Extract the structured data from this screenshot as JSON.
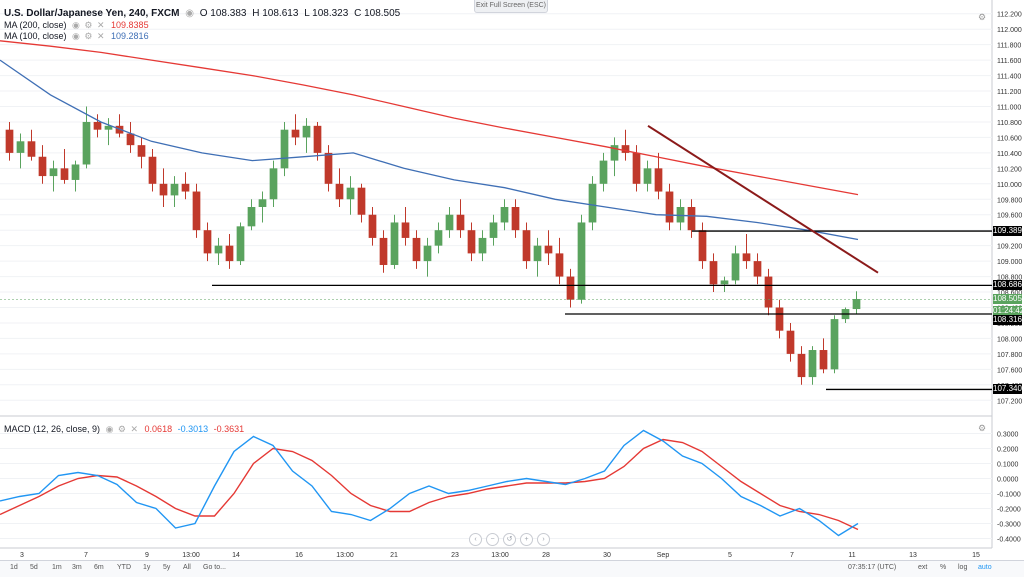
{
  "header": {
    "symbol": "U.S. Dollar/Japanese Yen, 240, FXCM",
    "ohlc": [
      "O 108.383",
      "H 108.613",
      "L 108.323",
      "C 108.505"
    ],
    "exit_label": "Exit Full Screen (ESC)"
  },
  "legends": {
    "ma200": {
      "label": "MA (200, close)",
      "value": "109.8385"
    },
    "ma100": {
      "label": "MA (100, close)",
      "value": "109.2816"
    },
    "macd": {
      "label": "MACD (12, 26, close, 9)",
      "hist": "0.0618",
      "macd": "-0.3013",
      "signal": "-0.3631"
    }
  },
  "colors": {
    "up": "#5aa35e",
    "down": "#c0392b",
    "ma200": "#e53935",
    "ma100": "#3f6fb5",
    "trendline": "#8b1a1a",
    "macd": "#2196f3",
    "signal": "#e53935"
  },
  "price_axis": {
    "ticks": [
      "112.200",
      "112.000",
      "111.800",
      "111.600",
      "111.400",
      "111.200",
      "111.000",
      "110.800",
      "110.600",
      "110.400",
      "110.200",
      "110.000",
      "109.800",
      "109.600",
      "109.400",
      "109.200",
      "109.000",
      "108.800",
      "108.600",
      "108.400",
      "108.200",
      "108.000",
      "107.800",
      "107.600",
      "107.400",
      "107.200"
    ],
    "tags": [
      {
        "price": "109.389",
        "y": 109.389,
        "color": "#000000"
      },
      {
        "price": "108.686",
        "y": 108.686,
        "color": "#000000"
      },
      {
        "price": "108.505",
        "y": 108.505,
        "color": "#5aa35e"
      },
      {
        "price": "01:24:42",
        "y": 108.36,
        "color": "#5aa35e"
      },
      {
        "price": "108.316",
        "y": 108.24,
        "color": "#000000"
      },
      {
        "price": "107.340",
        "y": 107.34,
        "color": "#000000"
      }
    ]
  },
  "macd_axis": {
    "ticks": [
      "0.3000",
      "0.2000",
      "0.1000",
      "0.0000",
      "-0.1000",
      "-0.2000",
      "-0.3000",
      "-0.4000"
    ]
  },
  "time_axis": {
    "labels": [
      "3",
      "7",
      "9",
      "13:00",
      "14",
      "16",
      "13:00",
      "21",
      "23",
      "13:00",
      "28",
      "30",
      "Sep",
      "5",
      "7",
      "11",
      "13",
      "15"
    ],
    "clock": "07:35:17 (UTC)",
    "right_items": [
      "ext",
      "%",
      "log",
      "auto"
    ]
  },
  "toolbar": {
    "ranges": [
      "1d",
      "5d",
      "1m",
      "3m",
      "6m",
      "YTD",
      "1y",
      "5y",
      "All",
      "Go to..."
    ]
  },
  "chart_data": {
    "type": "candlestick",
    "title": "U.S. Dollar/Japanese Yen, 240, FXCM",
    "ylim": [
      107.1,
      112.3
    ],
    "price_lines": [
      108.686,
      108.316,
      109.389,
      107.34
    ],
    "trendline": {
      "from": [
        0,
        110.75
      ],
      "to": [
        1,
        108.85
      ]
    },
    "candles": [
      [
        110.7,
        110.8,
        110.3,
        110.4
      ],
      [
        110.4,
        110.65,
        110.2,
        110.55
      ],
      [
        110.55,
        110.7,
        110.3,
        110.35
      ],
      [
        110.35,
        110.5,
        110.0,
        110.1
      ],
      [
        110.1,
        110.3,
        109.9,
        110.2
      ],
      [
        110.2,
        110.45,
        110.0,
        110.05
      ],
      [
        110.05,
        110.3,
        109.9,
        110.25
      ],
      [
        110.25,
        111.0,
        110.2,
        110.8
      ],
      [
        110.8,
        110.9,
        110.6,
        110.7
      ],
      [
        110.7,
        110.85,
        110.5,
        110.75
      ],
      [
        110.75,
        110.9,
        110.6,
        110.65
      ],
      [
        110.65,
        110.8,
        110.4,
        110.5
      ],
      [
        110.5,
        110.6,
        110.2,
        110.35
      ],
      [
        110.35,
        110.45,
        109.9,
        110.0
      ],
      [
        110.0,
        110.2,
        109.7,
        109.85
      ],
      [
        109.85,
        110.1,
        109.7,
        110.0
      ],
      [
        110.0,
        110.15,
        109.8,
        109.9
      ],
      [
        109.9,
        110.0,
        109.3,
        109.4
      ],
      [
        109.4,
        109.5,
        109.0,
        109.1
      ],
      [
        109.1,
        109.3,
        108.95,
        109.2
      ],
      [
        109.2,
        109.35,
        108.9,
        109.0
      ],
      [
        109.0,
        109.5,
        108.95,
        109.45
      ],
      [
        109.45,
        109.8,
        109.4,
        109.7
      ],
      [
        109.7,
        109.9,
        109.5,
        109.8
      ],
      [
        109.8,
        110.3,
        109.7,
        110.2
      ],
      [
        110.2,
        110.8,
        110.1,
        110.7
      ],
      [
        110.7,
        110.9,
        110.5,
        110.6
      ],
      [
        110.6,
        110.85,
        110.4,
        110.75
      ],
      [
        110.75,
        110.8,
        110.3,
        110.4
      ],
      [
        110.4,
        110.5,
        109.9,
        110.0
      ],
      [
        110.0,
        110.2,
        109.7,
        109.8
      ],
      [
        109.8,
        110.1,
        109.6,
        109.95
      ],
      [
        109.95,
        110.0,
        109.5,
        109.6
      ],
      [
        109.6,
        109.7,
        109.2,
        109.3
      ],
      [
        109.3,
        109.4,
        108.85,
        108.95
      ],
      [
        108.95,
        109.6,
        108.9,
        109.5
      ],
      [
        109.5,
        109.7,
        109.2,
        109.3
      ],
      [
        109.3,
        109.4,
        108.9,
        109.0
      ],
      [
        109.0,
        109.3,
        108.8,
        109.2
      ],
      [
        109.2,
        109.5,
        109.1,
        109.4
      ],
      [
        109.4,
        109.7,
        109.3,
        109.6
      ],
      [
        109.6,
        109.8,
        109.3,
        109.4
      ],
      [
        109.4,
        109.5,
        109.0,
        109.1
      ],
      [
        109.1,
        109.4,
        109.0,
        109.3
      ],
      [
        109.3,
        109.6,
        109.2,
        109.5
      ],
      [
        109.5,
        109.8,
        109.4,
        109.7
      ],
      [
        109.7,
        109.8,
        109.3,
        109.4
      ],
      [
        109.4,
        109.5,
        108.9,
        109.0
      ],
      [
        109.0,
        109.3,
        108.8,
        109.2
      ],
      [
        109.2,
        109.4,
        108.95,
        109.1
      ],
      [
        109.1,
        109.3,
        108.7,
        108.8
      ],
      [
        108.8,
        108.9,
        108.4,
        108.5
      ],
      [
        108.5,
        109.6,
        108.45,
        109.5
      ],
      [
        109.5,
        110.1,
        109.4,
        110.0
      ],
      [
        110.0,
        110.4,
        109.9,
        110.3
      ],
      [
        110.3,
        110.6,
        110.1,
        110.5
      ],
      [
        110.5,
        110.7,
        110.3,
        110.4
      ],
      [
        110.4,
        110.5,
        109.9,
        110.0
      ],
      [
        110.0,
        110.3,
        109.9,
        110.2
      ],
      [
        110.2,
        110.4,
        109.8,
        109.9
      ],
      [
        109.9,
        110.0,
        109.4,
        109.5
      ],
      [
        109.5,
        109.8,
        109.4,
        109.7
      ],
      [
        109.7,
        109.8,
        109.3,
        109.4
      ],
      [
        109.4,
        109.5,
        108.9,
        109.0
      ],
      [
        109.0,
        109.1,
        108.6,
        108.7
      ],
      [
        108.7,
        108.8,
        108.6,
        108.75
      ],
      [
        108.75,
        109.2,
        108.7,
        109.1
      ],
      [
        109.1,
        109.35,
        108.9,
        109.0
      ],
      [
        109.0,
        109.1,
        108.7,
        108.8
      ],
      [
        108.8,
        108.9,
        108.3,
        108.4
      ],
      [
        108.4,
        108.5,
        108.0,
        108.1
      ],
      [
        108.1,
        108.2,
        107.7,
        107.8
      ],
      [
        107.8,
        107.9,
        107.4,
        107.5
      ],
      [
        107.5,
        107.9,
        107.4,
        107.85
      ],
      [
        107.85,
        108.0,
        107.55,
        107.6
      ],
      [
        107.6,
        108.3,
        107.55,
        108.25
      ],
      [
        108.25,
        108.4,
        108.2,
        108.38
      ],
      [
        108.38,
        108.61,
        108.32,
        108.51
      ]
    ],
    "ma200": [
      111.85,
      111.78,
      111.7,
      111.6,
      111.5,
      111.4,
      111.28,
      111.15,
      111.0,
      110.85,
      110.72,
      110.6,
      110.48,
      110.35,
      110.22,
      110.1,
      109.98,
      109.86
    ],
    "ma100": [
      111.6,
      111.15,
      110.8,
      110.55,
      110.4,
      110.3,
      110.35,
      110.4,
      110.2,
      110.05,
      109.95,
      109.8,
      109.7,
      109.6,
      109.58,
      109.5,
      109.4,
      109.28
    ],
    "macd": [
      -0.15,
      -0.12,
      -0.1,
      0.02,
      0.04,
      0.02,
      -0.04,
      -0.16,
      -0.2,
      -0.33,
      -0.3,
      -0.05,
      0.18,
      0.28,
      0.22,
      0.05,
      -0.05,
      -0.22,
      -0.24,
      -0.28,
      -0.2,
      -0.1,
      -0.05,
      -0.1,
      -0.08,
      -0.05,
      -0.02,
      0.0,
      -0.02,
      -0.04,
      0.0,
      0.05,
      0.22,
      0.32,
      0.25,
      0.15,
      0.1,
      0.0,
      -0.12,
      -0.18,
      -0.25,
      -0.2,
      -0.28,
      -0.38,
      -0.3
    ],
    "signal": [
      -0.24,
      -0.18,
      -0.12,
      -0.05,
      0.0,
      0.02,
      0.01,
      -0.05,
      -0.12,
      -0.2,
      -0.25,
      -0.25,
      -0.1,
      0.1,
      0.2,
      0.18,
      0.12,
      0.02,
      -0.1,
      -0.18,
      -0.22,
      -0.22,
      -0.16,
      -0.12,
      -0.1,
      -0.07,
      -0.05,
      -0.03,
      -0.03,
      -0.03,
      -0.02,
      0.0,
      0.08,
      0.2,
      0.26,
      0.24,
      0.18,
      0.08,
      -0.02,
      -0.1,
      -0.18,
      -0.22,
      -0.24,
      -0.28,
      -0.34
    ]
  }
}
